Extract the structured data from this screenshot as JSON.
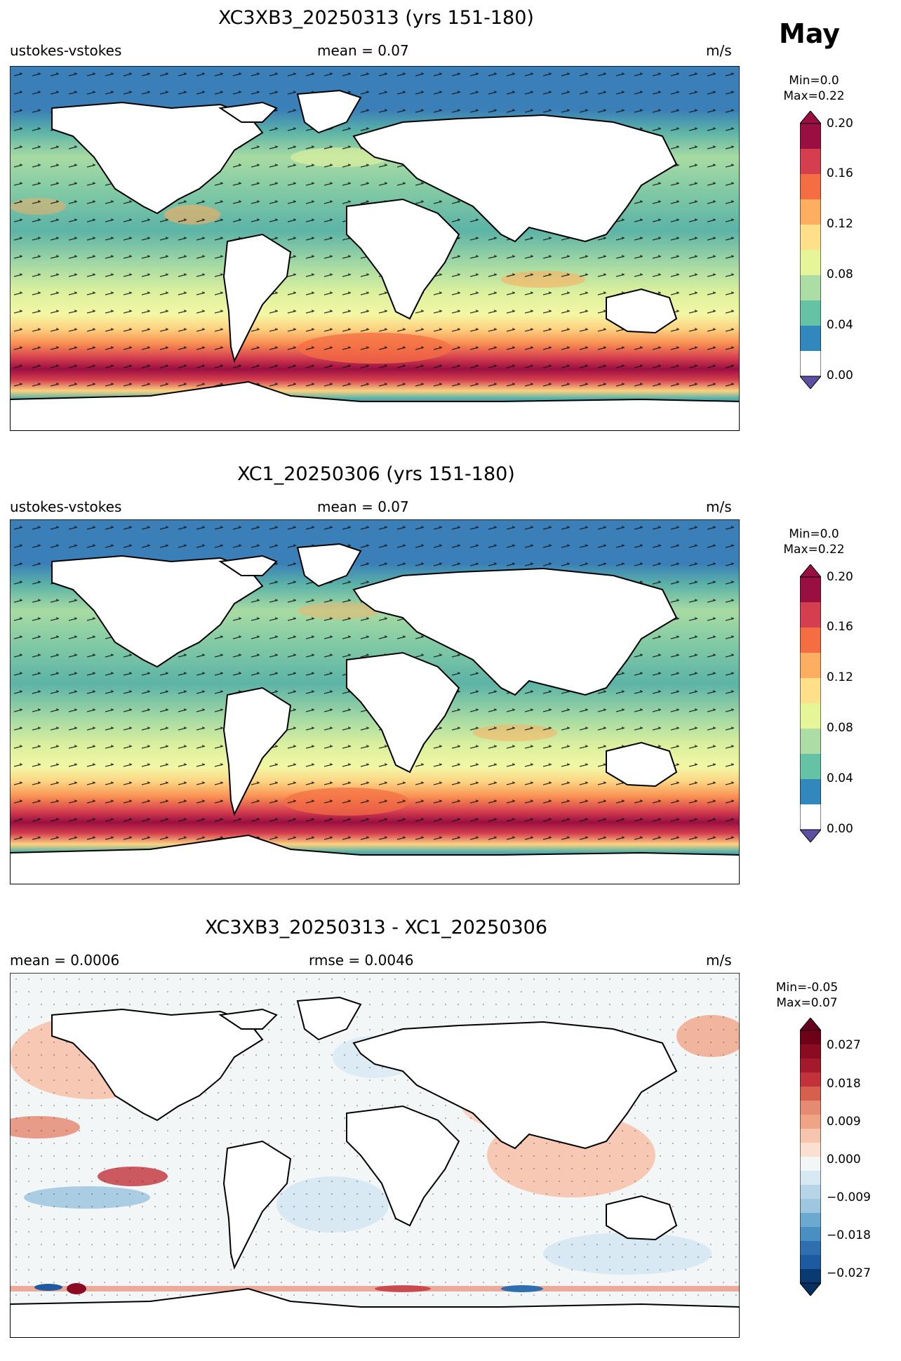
{
  "month": "May",
  "panels": [
    {
      "title": "XC3XB3_20250313 (yrs 151-180)",
      "left_label": "ustokes-vstokes",
      "center_label": "mean = 0.07",
      "right_label": "m/s",
      "colorbar": {
        "min_label": "Min=0.0",
        "max_label": "Max=0.22",
        "tick_labels": [
          "0.20",
          "0.16",
          "0.12",
          "0.08",
          "0.04",
          "0.00"
        ],
        "colormap": "RdYlBu_r / Spectral_r"
      }
    },
    {
      "title": "XC1_20250306 (yrs 151-180)",
      "left_label": "ustokes-vstokes",
      "center_label": "mean = 0.07",
      "right_label": "m/s",
      "colorbar": {
        "min_label": "Min=0.0",
        "max_label": "Max=0.22",
        "tick_labels": [
          "0.20",
          "0.16",
          "0.12",
          "0.08",
          "0.04",
          "0.00"
        ],
        "colormap": "RdYlBu_r / Spectral_r"
      }
    },
    {
      "title": "XC3XB3_20250313 - XC1_20250306",
      "left_label": "mean = 0.0006",
      "center_label": "rmse = 0.0046",
      "right_label": "m/s",
      "colorbar": {
        "min_label": "Min=-0.05",
        "max_label": "Max=0.07",
        "tick_labels": [
          "0.027",
          "0.018",
          "0.009",
          "0.000",
          "−0.009",
          "−0.018",
          "−0.027"
        ],
        "colormap": "RdBu_r"
      }
    }
  ],
  "colors": {
    "land": "#ffffff",
    "seq_low": "#3a7fb8",
    "seq_mid": "#f3f7a5",
    "seq_high": "#9a0f42",
    "div_low": "#0a3a72",
    "div_zero": "#f3f6f7",
    "div_high": "#6e0018"
  }
}
